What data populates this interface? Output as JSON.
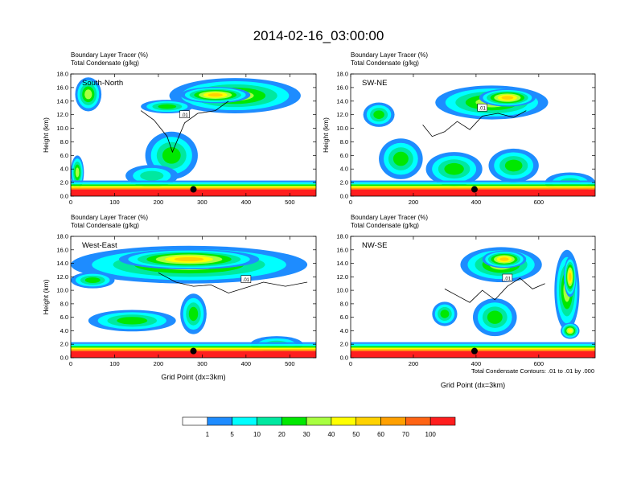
{
  "title": "2014-02-16_03:00:00",
  "chart_data": {
    "type": "heatmap",
    "title": "2014-02-16_03:00:00",
    "colorbar": {
      "colors": [
        "#ffffff",
        "#1e8cff",
        "#00ffff",
        "#00e8a0",
        "#00e800",
        "#a8ff40",
        "#ffff00",
        "#ffd200",
        "#ffa000",
        "#ff6414",
        "#ff1e1e"
      ],
      "labels": [
        "1",
        "5",
        "10",
        "20",
        "30",
        "40",
        "50",
        "60",
        "70",
        "100"
      ]
    },
    "panels": [
      {
        "name": "South-North",
        "label1": "Boundary Layer Tracer    (%)",
        "label2": "Total Condensate    (g/kg)",
        "ylabel": "Height (km)",
        "xlabel": "",
        "xlim": [
          0,
          560
        ],
        "ylim": [
          0,
          18
        ],
        "xticks": [
          "0",
          "100",
          "200",
          "300",
          "400",
          "500"
        ],
        "xtick_values": [
          0,
          100,
          200,
          300,
          400,
          500
        ],
        "yticks": [
          "0.0",
          "2.0",
          "4.0",
          "6.0",
          "8.0",
          "10.0",
          "12.0",
          "14.0",
          "16.0",
          "18.0"
        ],
        "contour_label": ".01",
        "marker_x": 280,
        "marker_y": 1.0,
        "blobs": [
          {
            "x": 375,
            "y": 14.8,
            "rx": 150,
            "ry": 2.6,
            "v": 30
          },
          {
            "x": 330,
            "y": 14.9,
            "rx": 80,
            "ry": 1.2,
            "v": 50
          },
          {
            "x": 220,
            "y": 13.2,
            "rx": 60,
            "ry": 1.0,
            "v": 20
          },
          {
            "x": 40,
            "y": 15.0,
            "rx": 30,
            "ry": 2.5,
            "v": 30
          },
          {
            "x": 230,
            "y": 6.0,
            "rx": 60,
            "ry": 3.5,
            "v": 20
          },
          {
            "x": 185,
            "y": 3.0,
            "rx": 60,
            "ry": 1.6,
            "v": 10
          },
          {
            "x": 15,
            "y": 3.5,
            "rx": 15,
            "ry": 2.5,
            "v": 30
          }
        ],
        "contour": [
          [
            160,
            12.6
          ],
          [
            190,
            11.2
          ],
          [
            220,
            8.8
          ],
          [
            232,
            6.5
          ],
          [
            245,
            8.5
          ],
          [
            260,
            10.8
          ],
          [
            290,
            12.2
          ],
          [
            330,
            12.6
          ],
          [
            360,
            14.0
          ]
        ]
      },
      {
        "name": "SW-NE",
        "label1": "Boundary Layer Tracer    (%)",
        "label2": "Total Condensate    (g/kg)",
        "ylabel": "Height (km)",
        "xlabel": "",
        "xlim": [
          0,
          780
        ],
        "ylim": [
          0,
          18
        ],
        "xticks": [
          "0",
          "200",
          "400",
          "600"
        ],
        "xtick_values": [
          0,
          200,
          400,
          600
        ],
        "yticks": [
          "0.0",
          "2.0",
          "4.0",
          "6.0",
          "8.0",
          "10.0",
          "12.0",
          "14.0",
          "16.0",
          "18.0"
        ],
        "contour_label": ".01",
        "marker_x": 395,
        "marker_y": 1.0,
        "blobs": [
          {
            "x": 450,
            "y": 13.8,
            "rx": 180,
            "ry": 2.5,
            "v": 30
          },
          {
            "x": 500,
            "y": 14.5,
            "rx": 90,
            "ry": 1.3,
            "v": 50
          },
          {
            "x": 90,
            "y": 12.0,
            "rx": 50,
            "ry": 1.8,
            "v": 20
          },
          {
            "x": 160,
            "y": 5.5,
            "rx": 70,
            "ry": 3.0,
            "v": 20
          },
          {
            "x": 330,
            "y": 4.0,
            "rx": 90,
            "ry": 2.5,
            "v": 20
          },
          {
            "x": 520,
            "y": 4.5,
            "rx": 80,
            "ry": 2.5,
            "v": 20
          },
          {
            "x": 700,
            "y": 2.0,
            "rx": 80,
            "ry": 1.5,
            "v": 10
          }
        ],
        "contour": [
          [
            230,
            10.5
          ],
          [
            260,
            8.8
          ],
          [
            300,
            9.5
          ],
          [
            340,
            11.0
          ],
          [
            380,
            9.8
          ],
          [
            420,
            11.8
          ],
          [
            470,
            12.2
          ],
          [
            520,
            11.6
          ],
          [
            560,
            12.6
          ]
        ]
      },
      {
        "name": "West-East",
        "label1": "Boundary Layer Tracer    (%)",
        "label2": "Total Condensate    (g/kg)",
        "ylabel": "Height (km)",
        "xlabel": "Grid Point (dx=3km)",
        "xlim": [
          0,
          560
        ],
        "ylim": [
          0,
          18
        ],
        "xticks": [
          "0",
          "100",
          "200",
          "300",
          "400",
          "500"
        ],
        "xtick_values": [
          0,
          100,
          200,
          300,
          400,
          500
        ],
        "yticks": [
          "0.0",
          "2.0",
          "4.0",
          "6.0",
          "8.0",
          "10.0",
          "12.0",
          "14.0",
          "16.0",
          "18.0"
        ],
        "contour_label": ".01",
        "marker_x": 280,
        "marker_y": 1.0,
        "blobs": [
          {
            "x": 270,
            "y": 13.8,
            "rx": 270,
            "ry": 2.8,
            "v": 30
          },
          {
            "x": 270,
            "y": 14.6,
            "rx": 160,
            "ry": 1.5,
            "v": 50
          },
          {
            "x": 50,
            "y": 11.5,
            "rx": 50,
            "ry": 1.2,
            "v": 20
          },
          {
            "x": 140,
            "y": 5.5,
            "rx": 100,
            "ry": 1.6,
            "v": 20
          },
          {
            "x": 280,
            "y": 6.5,
            "rx": 30,
            "ry": 3.0,
            "v": 20
          },
          {
            "x": 470,
            "y": 2.0,
            "rx": 60,
            "ry": 1.2,
            "v": 10
          }
        ],
        "contour": [
          [
            200,
            12.6
          ],
          [
            240,
            11.2
          ],
          [
            280,
            10.6
          ],
          [
            320,
            10.8
          ],
          [
            360,
            9.6
          ],
          [
            400,
            10.4
          ],
          [
            440,
            11.2
          ],
          [
            490,
            10.6
          ],
          [
            540,
            11.2
          ]
        ]
      },
      {
        "name": "NW-SE",
        "label1": "Boundary Layer Tracer    (%)",
        "label2": "Total Condensate    (g/kg)",
        "ylabel": "",
        "xlabel": "Grid Point (dx=3km)",
        "xlim": [
          0,
          780
        ],
        "ylim": [
          0,
          18
        ],
        "xticks": [
          "0",
          "200",
          "400",
          "600"
        ],
        "xtick_values": [
          0,
          200,
          400,
          600
        ],
        "yticks": [
          "0.0",
          "2.0",
          "4.0",
          "6.0",
          "8.0",
          "10.0",
          "12.0",
          "14.0",
          "16.0",
          "18.0"
        ],
        "contour_label": ".01",
        "marker_x": 395,
        "marker_y": 1.0,
        "blobs": [
          {
            "x": 480,
            "y": 13.8,
            "rx": 130,
            "ry": 2.6,
            "v": 30
          },
          {
            "x": 490,
            "y": 14.6,
            "rx": 70,
            "ry": 1.3,
            "v": 50
          },
          {
            "x": 690,
            "y": 10.0,
            "rx": 40,
            "ry": 6.0,
            "v": 30
          },
          {
            "x": 700,
            "y": 12.0,
            "rx": 20,
            "ry": 3.0,
            "v": 50
          },
          {
            "x": 460,
            "y": 6.0,
            "rx": 70,
            "ry": 2.8,
            "v": 20
          },
          {
            "x": 300,
            "y": 6.5,
            "rx": 40,
            "ry": 1.8,
            "v": 20
          },
          {
            "x": 700,
            "y": 4.0,
            "rx": 30,
            "ry": 1.2,
            "v": 40
          }
        ],
        "contour": [
          [
            300,
            10.2
          ],
          [
            340,
            9.2
          ],
          [
            380,
            8.2
          ],
          [
            420,
            10.0
          ],
          [
            460,
            8.6
          ],
          [
            500,
            10.6
          ],
          [
            540,
            11.8
          ],
          [
            580,
            10.2
          ],
          [
            620,
            11.0
          ]
        ]
      }
    ],
    "footnote": "Total Condensate Contours: .01 to .01 by .000"
  }
}
